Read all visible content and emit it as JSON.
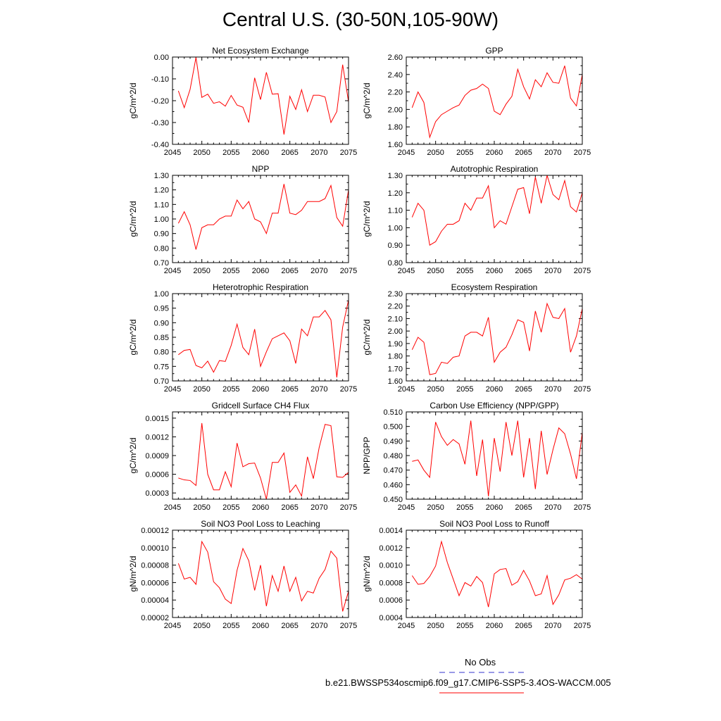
{
  "figure": {
    "title": "Central U.S. (30-50N,105-90W)"
  },
  "legend": {
    "items": [
      {
        "label": "No Obs",
        "color": "#3333cc",
        "style": "dashed"
      },
      {
        "label": "b.e21.BWSSP534oscmip6.f09_g17.CMIP6-SSP5-3.4OS-WACCM.005",
        "color": "#ff0000",
        "style": "solid"
      }
    ]
  },
  "chart_data": [
    {
      "type": "line",
      "title": "Net Ecosystem Exchange",
      "ylabel": "gC/m^2/d",
      "xlim": [
        2045,
        2075
      ],
      "ylim": [
        -0.4,
        0.0
      ],
      "xticks": [
        "2045",
        "2050",
        "2055",
        "2060",
        "2065",
        "2070",
        "2075"
      ],
      "yticks": [
        "0.00",
        "-0.10",
        "-0.20",
        "-0.30",
        "-0.40"
      ],
      "x": [
        2046,
        2047,
        2048,
        2049,
        2050,
        2051,
        2052,
        2053,
        2054,
        2055,
        2056,
        2057,
        2058,
        2059,
        2060,
        2061,
        2062,
        2063,
        2064,
        2065,
        2066,
        2067,
        2068,
        2069,
        2070,
        2071,
        2072,
        2073,
        2074,
        2075
      ],
      "series": [
        {
          "color": "#ff0000",
          "values": [
            -0.155,
            -0.232,
            -0.148,
            -0.002,
            -0.185,
            -0.17,
            -0.212,
            -0.205,
            -0.225,
            -0.176,
            -0.22,
            -0.23,
            -0.3,
            -0.095,
            -0.195,
            -0.07,
            -0.17,
            -0.168,
            -0.355,
            -0.18,
            -0.24,
            -0.15,
            -0.25,
            -0.175,
            -0.175,
            -0.183,
            -0.3,
            -0.25,
            -0.035,
            -0.205
          ]
        }
      ]
    },
    {
      "type": "line",
      "title": "GPP",
      "ylabel": "gC/m^2/d",
      "xlim": [
        2045,
        2075
      ],
      "ylim": [
        1.6,
        2.6
      ],
      "xticks": [
        "2045",
        "2050",
        "2055",
        "2060",
        "2065",
        "2070",
        "2075"
      ],
      "yticks": [
        "2.60",
        "2.40",
        "2.20",
        "2.00",
        "1.80",
        "1.60"
      ],
      "x": [
        2046,
        2047,
        2048,
        2049,
        2050,
        2051,
        2052,
        2053,
        2054,
        2055,
        2056,
        2057,
        2058,
        2059,
        2060,
        2061,
        2062,
        2063,
        2064,
        2065,
        2066,
        2067,
        2068,
        2069,
        2070,
        2071,
        2072,
        2073,
        2074,
        2075
      ],
      "series": [
        {
          "color": "#ff0000",
          "values": [
            2.02,
            2.2,
            2.08,
            1.68,
            1.86,
            1.94,
            1.98,
            2.02,
            2.05,
            2.16,
            2.22,
            2.24,
            2.29,
            2.24,
            1.98,
            1.94,
            2.06,
            2.15,
            2.46,
            2.26,
            2.12,
            2.34,
            2.26,
            2.42,
            2.31,
            2.3,
            2.5,
            2.13,
            2.04,
            2.4
          ]
        }
      ]
    },
    {
      "type": "line",
      "title": "NPP",
      "ylabel": "gC/m^2/d",
      "xlim": [
        2045,
        2075
      ],
      "ylim": [
        0.7,
        1.3
      ],
      "xticks": [
        "2045",
        "2050",
        "2055",
        "2060",
        "2065",
        "2070",
        "2075"
      ],
      "yticks": [
        "1.30",
        "1.20",
        "1.10",
        "1.00",
        "0.90",
        "0.80",
        "0.70"
      ],
      "x": [
        2046,
        2047,
        2048,
        2049,
        2050,
        2051,
        2052,
        2053,
        2054,
        2055,
        2056,
        2057,
        2058,
        2059,
        2060,
        2061,
        2062,
        2063,
        2064,
        2065,
        2066,
        2067,
        2068,
        2069,
        2070,
        2071,
        2072,
        2073,
        2074,
        2075
      ],
      "series": [
        {
          "color": "#ff0000",
          "values": [
            0.97,
            1.05,
            0.96,
            0.79,
            0.94,
            0.96,
            0.96,
            1.0,
            1.02,
            1.02,
            1.13,
            1.07,
            1.12,
            1.0,
            0.98,
            0.9,
            1.04,
            1.04,
            1.24,
            1.04,
            1.03,
            1.06,
            1.12,
            1.12,
            1.12,
            1.14,
            1.23,
            1.01,
            0.95,
            1.2
          ]
        }
      ]
    },
    {
      "type": "line",
      "title": "Autotrophic Respiration",
      "ylabel": "gC/m^2/d",
      "xlim": [
        2045,
        2075
      ],
      "ylim": [
        0.8,
        1.3
      ],
      "xticks": [
        "2045",
        "2050",
        "2055",
        "2060",
        "2065",
        "2070",
        "2075"
      ],
      "yticks": [
        "1.30",
        "1.20",
        "1.10",
        "1.00",
        "0.90",
        "0.80"
      ],
      "x": [
        2046,
        2047,
        2048,
        2049,
        2050,
        2051,
        2052,
        2053,
        2054,
        2055,
        2056,
        2057,
        2058,
        2059,
        2060,
        2061,
        2062,
        2063,
        2064,
        2065,
        2066,
        2067,
        2068,
        2069,
        2070,
        2071,
        2072,
        2073,
        2074,
        2075
      ],
      "series": [
        {
          "color": "#ff0000",
          "values": [
            1.06,
            1.14,
            1.1,
            0.9,
            0.92,
            0.98,
            1.02,
            1.02,
            1.04,
            1.14,
            1.1,
            1.17,
            1.17,
            1.24,
            1.0,
            1.04,
            1.02,
            1.12,
            1.22,
            1.23,
            1.08,
            1.29,
            1.14,
            1.3,
            1.19,
            1.16,
            1.27,
            1.12,
            1.09,
            1.2
          ]
        }
      ]
    },
    {
      "type": "line",
      "title": "Heterotrophic Respiration",
      "ylabel": "gC/m^2/d",
      "xlim": [
        2045,
        2075
      ],
      "ylim": [
        0.7,
        1.0
      ],
      "xticks": [
        "2045",
        "2050",
        "2055",
        "2060",
        "2065",
        "2070",
        "2075"
      ],
      "yticks": [
        "1.00",
        "0.95",
        "0.90",
        "0.85",
        "0.80",
        "0.75",
        "0.70"
      ],
      "x": [
        2046,
        2047,
        2048,
        2049,
        2050,
        2051,
        2052,
        2053,
        2054,
        2055,
        2056,
        2057,
        2058,
        2059,
        2060,
        2061,
        2062,
        2063,
        2064,
        2065,
        2066,
        2067,
        2068,
        2069,
        2070,
        2071,
        2072,
        2073,
        2074,
        2075
      ],
      "series": [
        {
          "color": "#ff0000",
          "values": [
            0.79,
            0.805,
            0.808,
            0.753,
            0.745,
            0.768,
            0.73,
            0.77,
            0.767,
            0.822,
            0.895,
            0.815,
            0.79,
            0.878,
            0.75,
            0.8,
            0.845,
            0.855,
            0.865,
            0.838,
            0.76,
            0.878,
            0.855,
            0.92,
            0.92,
            0.942,
            0.91,
            0.712,
            0.885,
            0.978
          ]
        }
      ]
    },
    {
      "type": "line",
      "title": "Ecosystem Respiration",
      "ylabel": "gC/m^2/d",
      "xlim": [
        2045,
        2075
      ],
      "ylim": [
        1.6,
        2.3
      ],
      "xticks": [
        "2045",
        "2050",
        "2055",
        "2060",
        "2065",
        "2070",
        "2075"
      ],
      "yticks": [
        "2.30",
        "2.20",
        "2.10",
        "2.00",
        "1.90",
        "1.80",
        "1.70",
        "1.60"
      ],
      "x": [
        2046,
        2047,
        2048,
        2049,
        2050,
        2051,
        2052,
        2053,
        2054,
        2055,
        2056,
        2057,
        2058,
        2059,
        2060,
        2061,
        2062,
        2063,
        2064,
        2065,
        2066,
        2067,
        2068,
        2069,
        2070,
        2071,
        2072,
        2073,
        2074,
        2075
      ],
      "series": [
        {
          "color": "#ff0000",
          "values": [
            1.85,
            1.95,
            1.91,
            1.65,
            1.66,
            1.75,
            1.74,
            1.79,
            1.8,
            1.96,
            1.99,
            1.99,
            1.96,
            2.11,
            1.75,
            1.83,
            1.87,
            1.97,
            2.09,
            2.07,
            1.84,
            2.16,
            1.99,
            2.22,
            2.11,
            2.1,
            2.18,
            1.83,
            1.96,
            2.18
          ]
        }
      ]
    },
    {
      "type": "line",
      "title": "Gridcell Surface CH4 Flux",
      "ylabel": "gC/m^2/d",
      "xlim": [
        2045,
        2075
      ],
      "ylim": [
        0.0002,
        0.0016
      ],
      "xticks": [
        "2045",
        "2050",
        "2055",
        "2060",
        "2065",
        "2070",
        "2075"
      ],
      "yticks": [
        "0.0015",
        "0.0012",
        "0.0009",
        "0.0006",
        "0.0003"
      ],
      "x": [
        2046,
        2047,
        2048,
        2049,
        2050,
        2051,
        2052,
        2053,
        2054,
        2055,
        2056,
        2057,
        2058,
        2059,
        2060,
        2061,
        2062,
        2063,
        2064,
        2065,
        2066,
        2067,
        2068,
        2069,
        2070,
        2071,
        2072,
        2073,
        2074,
        2075
      ],
      "series": [
        {
          "color": "#ff0000",
          "values": [
            0.00054,
            0.00051,
            0.0005,
            0.00042,
            0.00142,
            0.0006,
            0.00035,
            0.00035,
            0.00064,
            0.0004,
            0.0011,
            0.00072,
            0.00077,
            0.00078,
            0.00054,
            0.0002,
            0.00079,
            0.00079,
            0.00094,
            0.00031,
            0.00043,
            0.00025,
            0.00088,
            0.00053,
            0.00103,
            0.0014,
            0.00138,
            0.00056,
            0.00055,
            0.00063
          ]
        }
      ]
    },
    {
      "type": "line",
      "title": "Carbon Use Efficiency (NPP/GPP)",
      "ylabel": "NPP/GPP",
      "xlim": [
        2045,
        2075
      ],
      "ylim": [
        0.45,
        0.51
      ],
      "xticks": [
        "2045",
        "2050",
        "2055",
        "2060",
        "2065",
        "2070",
        "2075"
      ],
      "yticks": [
        "0.510",
        "0.500",
        "0.490",
        "0.480",
        "0.470",
        "0.460",
        "0.450"
      ],
      "x": [
        2046,
        2047,
        2048,
        2049,
        2050,
        2051,
        2052,
        2053,
        2054,
        2055,
        2056,
        2057,
        2058,
        2059,
        2060,
        2061,
        2062,
        2063,
        2064,
        2065,
        2066,
        2067,
        2068,
        2069,
        2070,
        2071,
        2072,
        2073,
        2074,
        2075
      ],
      "series": [
        {
          "color": "#ff0000",
          "values": [
            0.476,
            0.477,
            0.47,
            0.465,
            0.503,
            0.493,
            0.487,
            0.491,
            0.488,
            0.474,
            0.504,
            0.466,
            0.491,
            0.452,
            0.492,
            0.469,
            0.503,
            0.48,
            0.504,
            0.465,
            0.492,
            0.457,
            0.497,
            0.467,
            0.484,
            0.499,
            0.495,
            0.481,
            0.464,
            0.496
          ]
        }
      ]
    },
    {
      "type": "line",
      "title": "Soil NO3 Pool Loss to Leaching",
      "ylabel": "gN/m^2/d",
      "xlim": [
        2045,
        2075
      ],
      "ylim": [
        2e-05,
        0.00012
      ],
      "xticks": [
        "2045",
        "2050",
        "2055",
        "2060",
        "2065",
        "2070",
        "2075"
      ],
      "yticks": [
        "0.00012",
        "0.00010",
        "0.00008",
        "0.00006",
        "0.00004",
        "0.00002"
      ],
      "x": [
        2046,
        2047,
        2048,
        2049,
        2050,
        2051,
        2052,
        2053,
        2054,
        2055,
        2056,
        2057,
        2058,
        2059,
        2060,
        2061,
        2062,
        2063,
        2064,
        2065,
        2066,
        2067,
        2068,
        2069,
        2070,
        2071,
        2072,
        2073,
        2074,
        2075
      ],
      "series": [
        {
          "color": "#ff0000",
          "values": [
            8.2e-05,
            6.4e-05,
            6.6e-05,
            5.8e-05,
            0.000107,
            9.5e-05,
            6.1e-05,
            5.4e-05,
            4.1e-05,
            3.6e-05,
            7.4e-05,
            9.9e-05,
            8.5e-05,
            5.1e-05,
            8e-05,
            3.3e-05,
            6.8e-05,
            5e-05,
            7.9e-05,
            5e-05,
            6.6e-05,
            3.9e-05,
            5e-05,
            4.8e-05,
            6.5e-05,
            7.5e-05,
            9.6e-05,
            8.8e-05,
            2.7e-05,
            5e-05
          ]
        }
      ]
    },
    {
      "type": "line",
      "title": "Soil NO3 Pool Loss to Runoff",
      "ylabel": "gN/m^2/d",
      "xlim": [
        2045,
        2075
      ],
      "ylim": [
        0.0004,
        0.0014
      ],
      "xticks": [
        "2045",
        "2050",
        "2055",
        "2060",
        "2065",
        "2070",
        "2075"
      ],
      "yticks": [
        "0.0014",
        "0.0012",
        "0.0010",
        "0.0008",
        "0.0006",
        "0.0004"
      ],
      "x": [
        2046,
        2047,
        2048,
        2049,
        2050,
        2051,
        2052,
        2053,
        2054,
        2055,
        2056,
        2057,
        2058,
        2059,
        2060,
        2061,
        2062,
        2063,
        2064,
        2065,
        2066,
        2067,
        2068,
        2069,
        2070,
        2071,
        2072,
        2073,
        2074,
        2075
      ],
      "series": [
        {
          "color": "#ff0000",
          "values": [
            0.00088,
            0.00078,
            0.00079,
            0.00087,
            0.00099,
            0.00127,
            0.00103,
            0.00084,
            0.00065,
            0.0008,
            0.00076,
            0.00087,
            0.0008,
            0.00052,
            0.0009,
            0.00095,
            0.00096,
            0.00077,
            0.00081,
            0.00094,
            0.00082,
            0.00065,
            0.00067,
            0.00088,
            0.00055,
            0.00066,
            0.00083,
            0.00085,
            0.00089,
            0.00084
          ]
        }
      ]
    }
  ]
}
